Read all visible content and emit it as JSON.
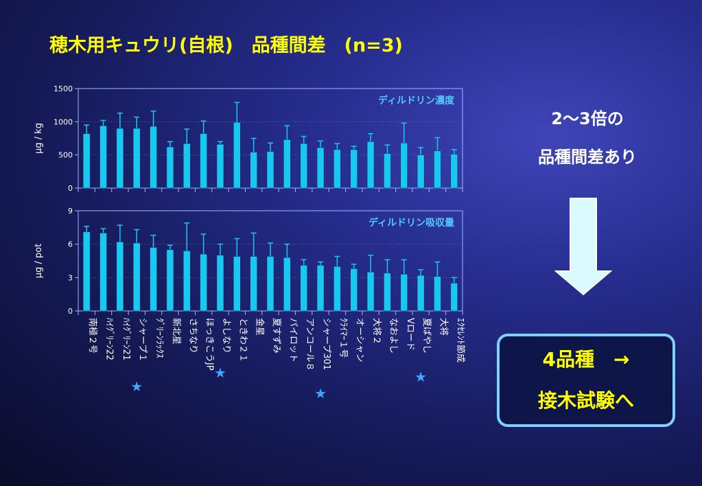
{
  "title": "穂木用キュウリ(自根)　品種間差　(n=3)",
  "note": {
    "line1": "2～3倍の",
    "line2": "品種間差あり"
  },
  "conclusion": {
    "line1": "4品種　→",
    "line2": "接木試験へ"
  },
  "colors": {
    "bar": "#18c8f0",
    "bar_edge": "#0a2a5a",
    "frame": "#9fb8ff",
    "title": "#ffff00",
    "label": "#4fc8ff",
    "star": "#3aa8ff",
    "arrow_fill": "#d9fbff"
  },
  "categories": [
    "南極２号",
    "ﾊｲｸﾞﾘｰﾝ22",
    "ﾊｲｸﾞﾘｰﾝ21",
    "シャープ１",
    "ｸﾞﾘｰﾝﾗｯｸｽ",
    "新北星",
    "さちなり",
    "ほっきこうJP",
    "よしなり",
    "ときわ２１",
    "金星",
    "夏すずみ",
    "パイロット",
    "アンコール８",
    "シャープ301",
    "ｸﾗｲﾏｰ１号",
    "オーシャン",
    "大将２",
    "なおよし",
    "Vロード",
    "夏ばやし",
    "大将",
    "ｴｸｾﾚﾝﾄ節成"
  ],
  "starred": [
    "シャープ１",
    "よしなり",
    "シャープ301",
    "夏ばやし"
  ],
  "star_symbol": "★",
  "chart_data": [
    {
      "type": "bar",
      "title": "ディルドリン濃度",
      "ylabel": "μg / kg",
      "ylim": [
        0,
        1500
      ],
      "yticks": [
        0,
        500,
        1000,
        1500
      ],
      "grid": true,
      "values": [
        820,
        940,
        900,
        900,
        930,
        620,
        670,
        820,
        660,
        990,
        540,
        550,
        730,
        670,
        610,
        580,
        580,
        700,
        520,
        680,
        500,
        560,
        510
      ],
      "errors": [
        130,
        80,
        230,
        170,
        230,
        80,
        220,
        190,
        40,
        300,
        210,
        130,
        210,
        110,
        100,
        90,
        50,
        120,
        130,
        300,
        110,
        200,
        70
      ]
    },
    {
      "type": "bar",
      "title": "ディルドリン吸収量",
      "ylabel": "μg / pot",
      "ylim": [
        0,
        9
      ],
      "yticks": [
        0,
        3,
        6,
        9
      ],
      "grid": true,
      "values": [
        7.1,
        7.0,
        6.2,
        6.1,
        5.7,
        5.5,
        5.4,
        5.1,
        5.0,
        4.9,
        4.9,
        4.9,
        4.8,
        4.1,
        4.1,
        4.0,
        3.8,
        3.5,
        3.4,
        3.3,
        3.2,
        3.1,
        2.5
      ],
      "errors": [
        0.5,
        0.4,
        1.5,
        1.2,
        1.1,
        0.4,
        2.5,
        1.8,
        1.0,
        1.6,
        2.1,
        1.2,
        1.2,
        0.5,
        0.3,
        0.9,
        0.4,
        1.5,
        1.2,
        1.3,
        0.5,
        1.3,
        0.5
      ]
    }
  ]
}
